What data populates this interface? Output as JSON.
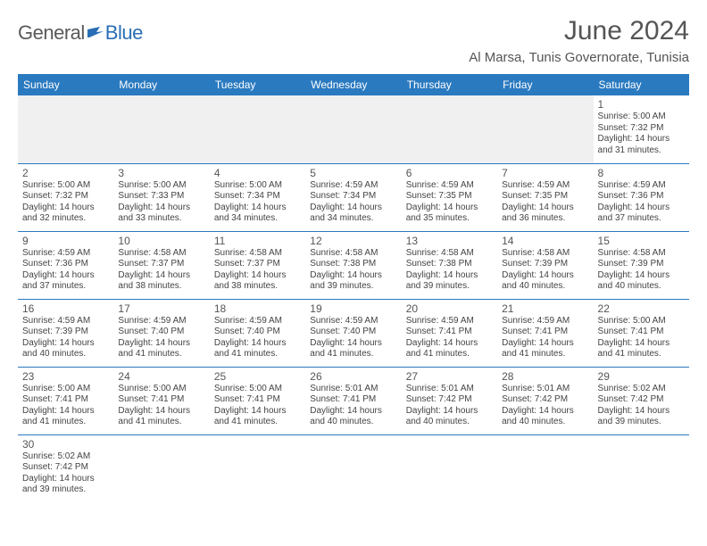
{
  "logo": {
    "part1": "General",
    "part2": "Blue",
    "flag_color": "#2a6fb5"
  },
  "title": "June 2024",
  "location": "Al Marsa, Tunis Governorate, Tunisia",
  "header_bg": "#2a7ac0",
  "header_fg": "#ffffff",
  "row_border": "#2a7ac0",
  "empty_bg": "#f0f0f0",
  "weekdays": [
    "Sunday",
    "Monday",
    "Tuesday",
    "Wednesday",
    "Thursday",
    "Friday",
    "Saturday"
  ],
  "weeks": [
    [
      null,
      null,
      null,
      null,
      null,
      null,
      {
        "n": "1",
        "rise": "5:00 AM",
        "set": "7:32 PM",
        "day": "14 hours and 31 minutes."
      }
    ],
    [
      {
        "n": "2",
        "rise": "5:00 AM",
        "set": "7:32 PM",
        "day": "14 hours and 32 minutes."
      },
      {
        "n": "3",
        "rise": "5:00 AM",
        "set": "7:33 PM",
        "day": "14 hours and 33 minutes."
      },
      {
        "n": "4",
        "rise": "5:00 AM",
        "set": "7:34 PM",
        "day": "14 hours and 34 minutes."
      },
      {
        "n": "5",
        "rise": "4:59 AM",
        "set": "7:34 PM",
        "day": "14 hours and 34 minutes."
      },
      {
        "n": "6",
        "rise": "4:59 AM",
        "set": "7:35 PM",
        "day": "14 hours and 35 minutes."
      },
      {
        "n": "7",
        "rise": "4:59 AM",
        "set": "7:35 PM",
        "day": "14 hours and 36 minutes."
      },
      {
        "n": "8",
        "rise": "4:59 AM",
        "set": "7:36 PM",
        "day": "14 hours and 37 minutes."
      }
    ],
    [
      {
        "n": "9",
        "rise": "4:59 AM",
        "set": "7:36 PM",
        "day": "14 hours and 37 minutes."
      },
      {
        "n": "10",
        "rise": "4:58 AM",
        "set": "7:37 PM",
        "day": "14 hours and 38 minutes."
      },
      {
        "n": "11",
        "rise": "4:58 AM",
        "set": "7:37 PM",
        "day": "14 hours and 38 minutes."
      },
      {
        "n": "12",
        "rise": "4:58 AM",
        "set": "7:38 PM",
        "day": "14 hours and 39 minutes."
      },
      {
        "n": "13",
        "rise": "4:58 AM",
        "set": "7:38 PM",
        "day": "14 hours and 39 minutes."
      },
      {
        "n": "14",
        "rise": "4:58 AM",
        "set": "7:39 PM",
        "day": "14 hours and 40 minutes."
      },
      {
        "n": "15",
        "rise": "4:58 AM",
        "set": "7:39 PM",
        "day": "14 hours and 40 minutes."
      }
    ],
    [
      {
        "n": "16",
        "rise": "4:59 AM",
        "set": "7:39 PM",
        "day": "14 hours and 40 minutes."
      },
      {
        "n": "17",
        "rise": "4:59 AM",
        "set": "7:40 PM",
        "day": "14 hours and 41 minutes."
      },
      {
        "n": "18",
        "rise": "4:59 AM",
        "set": "7:40 PM",
        "day": "14 hours and 41 minutes."
      },
      {
        "n": "19",
        "rise": "4:59 AM",
        "set": "7:40 PM",
        "day": "14 hours and 41 minutes."
      },
      {
        "n": "20",
        "rise": "4:59 AM",
        "set": "7:41 PM",
        "day": "14 hours and 41 minutes."
      },
      {
        "n": "21",
        "rise": "4:59 AM",
        "set": "7:41 PM",
        "day": "14 hours and 41 minutes."
      },
      {
        "n": "22",
        "rise": "5:00 AM",
        "set": "7:41 PM",
        "day": "14 hours and 41 minutes."
      }
    ],
    [
      {
        "n": "23",
        "rise": "5:00 AM",
        "set": "7:41 PM",
        "day": "14 hours and 41 minutes."
      },
      {
        "n": "24",
        "rise": "5:00 AM",
        "set": "7:41 PM",
        "day": "14 hours and 41 minutes."
      },
      {
        "n": "25",
        "rise": "5:00 AM",
        "set": "7:41 PM",
        "day": "14 hours and 41 minutes."
      },
      {
        "n": "26",
        "rise": "5:01 AM",
        "set": "7:41 PM",
        "day": "14 hours and 40 minutes."
      },
      {
        "n": "27",
        "rise": "5:01 AM",
        "set": "7:42 PM",
        "day": "14 hours and 40 minutes."
      },
      {
        "n": "28",
        "rise": "5:01 AM",
        "set": "7:42 PM",
        "day": "14 hours and 40 minutes."
      },
      {
        "n": "29",
        "rise": "5:02 AM",
        "set": "7:42 PM",
        "day": "14 hours and 39 minutes."
      }
    ],
    [
      {
        "n": "30",
        "rise": "5:02 AM",
        "set": "7:42 PM",
        "day": "14 hours and 39 minutes."
      },
      null,
      null,
      null,
      null,
      null,
      null
    ]
  ],
  "labels": {
    "sunrise": "Sunrise:",
    "sunset": "Sunset:",
    "daylight": "Daylight:"
  }
}
